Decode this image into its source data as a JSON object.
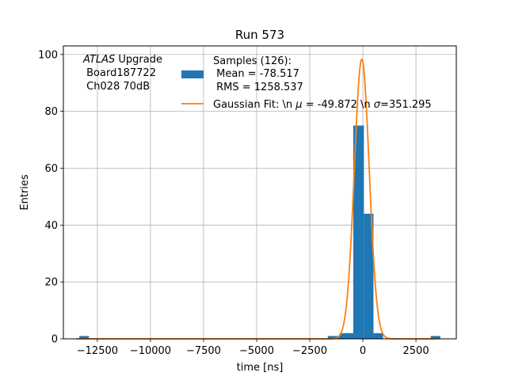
{
  "chart_data": {
    "type": "bar",
    "title": "Run 573",
    "xlabel": "time [ns]",
    "ylabel": "Entries",
    "xlim": [
      -14100,
      4400
    ],
    "ylim": [
      0,
      103
    ],
    "grid": true,
    "xticks": [
      -12500,
      -10000,
      -7500,
      -5000,
      -2500,
      0,
      2500
    ],
    "xtick_labels": [
      "−12500",
      "−10000",
      "−7500",
      "−5000",
      "−2500",
      "0",
      "2500"
    ],
    "yticks": [
      0,
      20,
      40,
      60,
      80,
      100
    ],
    "ytick_labels": [
      "0",
      "20",
      "40",
      "60",
      "80",
      "100"
    ],
    "annotation": {
      "italic_part": "ATLAS",
      "line1_rest": " Upgrade",
      "line2": " Board187722",
      "line3": " Ch028 70dB"
    },
    "legend": {
      "placement": "top-right",
      "histogram": {
        "line1": "Samples (126):",
        "line2": " Mean = -78.517",
        "line3": " RMS = 1258.537",
        "color": "#1f77b4"
      },
      "fit": {
        "label_prefix": "Gaussian Fit: \\n ",
        "mu_symbol": "μ",
        "mu_text": " = -49.872 \\n ",
        "sigma_symbol": "σ",
        "sigma_text": "=351.295",
        "color": "#ff7f0e"
      }
    },
    "histogram": {
      "name": "Samples (126):",
      "color": "#1f77b4",
      "bins": [
        {
          "x0": -13350,
          "x1": -12900,
          "count": 1
        },
        {
          "x0": -1650,
          "x1": -1100,
          "count": 1
        },
        {
          "x0": -1100,
          "x1": -450,
          "count": 2
        },
        {
          "x0": -450,
          "x1": 50,
          "count": 75
        },
        {
          "x0": 50,
          "x1": 500,
          "count": 44
        },
        {
          "x0": 500,
          "x1": 950,
          "count": 2
        },
        {
          "x0": 3200,
          "x1": 3650,
          "count": 1
        }
      ]
    },
    "fit_curve": {
      "name": "Gaussian Fit",
      "color": "#ff7f0e",
      "mu": -49.872,
      "sigma": 351.295,
      "amplitude": 98.3
    }
  }
}
